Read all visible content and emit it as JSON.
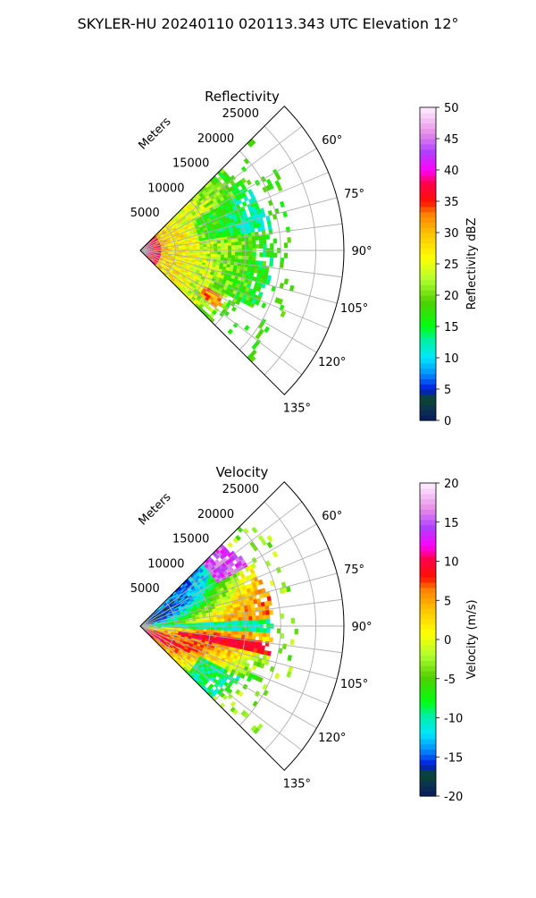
{
  "figure_title": "SKYLER-HU  20240110  020113.343 UTC Elevation 12°",
  "chart_data": [
    {
      "type": "heatmap",
      "projection": "polar-sector",
      "title": "Reflectivity",
      "range_label": "Meters",
      "range_ticks": [
        "5000",
        "10000",
        "15000",
        "20000",
        "25000"
      ],
      "range_max": 29000,
      "theta_ticks": [
        "60°",
        "75°",
        "90°",
        "105°",
        "120°",
        "135°"
      ],
      "theta_range": [
        45,
        135
      ],
      "colorbar": {
        "label": "Reflectivity dBZ",
        "min": 0,
        "max": 50,
        "ticks": [
          "0",
          "5",
          "10",
          "15",
          "20",
          "25",
          "30",
          "35",
          "40",
          "45",
          "50"
        ]
      },
      "field": "reflectivity"
    },
    {
      "type": "heatmap",
      "projection": "polar-sector",
      "title": "Velocity",
      "range_label": "Meters",
      "range_ticks": [
        "5000",
        "10000",
        "15000",
        "20000",
        "25000"
      ],
      "range_max": 29000,
      "theta_ticks": [
        "60°",
        "75°",
        "90°",
        "105°",
        "120°",
        "135°"
      ],
      "theta_range": [
        45,
        135
      ],
      "colorbar": {
        "label": "Velocity (m/s)",
        "min": -20,
        "max": 20,
        "ticks": [
          "-20",
          "-15",
          "-10",
          "-5",
          "0",
          "5",
          "10",
          "15",
          "20"
        ]
      },
      "field": "velocity"
    }
  ]
}
